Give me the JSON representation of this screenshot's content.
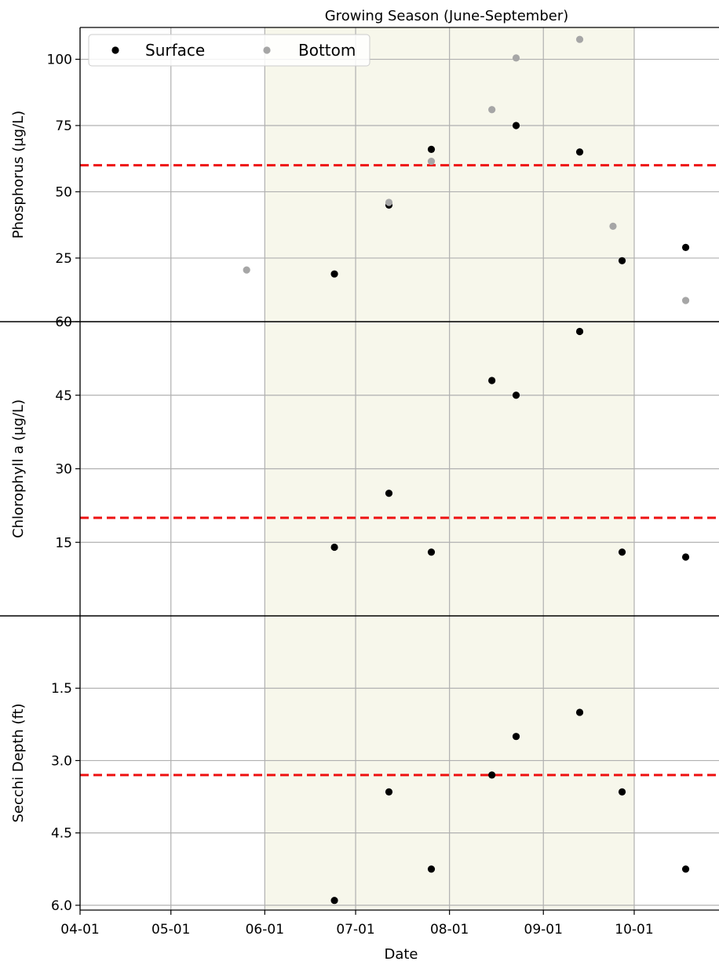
{
  "chart_data": {
    "type": "scatter",
    "annotation": "Growing Season (June-September)",
    "xlabel": "Date",
    "x_ticks": [
      "04-01",
      "05-01",
      "06-01",
      "07-01",
      "08-01",
      "09-01",
      "10-01"
    ],
    "x_tick_dates": [
      "2000-04-01",
      "2000-05-01",
      "2000-06-01",
      "2000-07-01",
      "2000-08-01",
      "2000-09-01",
      "2000-10-01"
    ],
    "xlim": [
      "2000-04-01",
      "2000-10-29"
    ],
    "shaded_region": {
      "from": "2000-06-01",
      "to": "2000-10-01",
      "color": "#f7f7eb"
    },
    "grid": true,
    "legend": {
      "placement": "top-left",
      "entries": [
        "Surface",
        "Bottom"
      ]
    },
    "colors": {
      "surface": "#000000",
      "bottom": "#a6a6a6",
      "threshold": "#ee1111",
      "grid": "#b0b0b0"
    },
    "panels": [
      {
        "ylabel": "Phosphorus (µg/L)",
        "ylim": [
          1,
          112
        ],
        "inverted": false,
        "y_ticks": [
          100,
          75,
          50,
          25
        ],
        "y_tick_labels": [
          "100",
          "75",
          "50",
          "25"
        ],
        "threshold": 60,
        "series": [
          {
            "name": "Surface",
            "points": [
              {
                "x": "2000-06-24",
                "y": 19
              },
              {
                "x": "2000-07-12",
                "y": 45
              },
              {
                "x": "2000-07-26",
                "y": 66
              },
              {
                "x": "2000-08-23",
                "y": 75
              },
              {
                "x": "2000-09-13",
                "y": 65
              },
              {
                "x": "2000-09-27",
                "y": 24
              },
              {
                "x": "2000-10-18",
                "y": 29
              }
            ]
          },
          {
            "name": "Bottom",
            "points": [
              {
                "x": "2000-05-26",
                "y": 20.5
              },
              {
                "x": "2000-07-12",
                "y": 46
              },
              {
                "x": "2000-07-26",
                "y": 61.5
              },
              {
                "x": "2000-08-15",
                "y": 81
              },
              {
                "x": "2000-08-23",
                "y": 100.5
              },
              {
                "x": "2000-09-13",
                "y": 107.5
              },
              {
                "x": "2000-09-24",
                "y": 37
              },
              {
                "x": "2000-10-18",
                "y": 9
              }
            ]
          }
        ]
      },
      {
        "ylabel": "Chlorophyll a (µg/L)",
        "ylim": [
          0,
          60
        ],
        "inverted": false,
        "y_ticks": [
          60,
          45,
          30,
          15
        ],
        "y_tick_labels": [
          "60",
          "45",
          "30",
          "15"
        ],
        "threshold": 20,
        "series": [
          {
            "name": "Surface",
            "points": [
              {
                "x": "2000-06-24",
                "y": 14
              },
              {
                "x": "2000-07-12",
                "y": 25
              },
              {
                "x": "2000-07-26",
                "y": 13
              },
              {
                "x": "2000-08-15",
                "y": 48
              },
              {
                "x": "2000-08-23",
                "y": 45
              },
              {
                "x": "2000-09-13",
                "y": 58
              },
              {
                "x": "2000-09-27",
                "y": 13
              },
              {
                "x": "2000-10-18",
                "y": 12
              }
            ]
          }
        ]
      },
      {
        "ylabel": "Secchi Depth (ft)",
        "ylim": [
          0,
          6.1
        ],
        "inverted": true,
        "y_ticks": [
          1.5,
          3.0,
          4.5,
          6.0
        ],
        "y_tick_labels": [
          "1.5",
          "3.0",
          "4.5",
          "6.0"
        ],
        "threshold": 3.3,
        "series": [
          {
            "name": "Surface",
            "points": [
              {
                "x": "2000-06-24",
                "y": 5.9
              },
              {
                "x": "2000-07-12",
                "y": 3.65
              },
              {
                "x": "2000-07-26",
                "y": 5.25
              },
              {
                "x": "2000-08-15",
                "y": 3.3
              },
              {
                "x": "2000-08-23",
                "y": 2.5
              },
              {
                "x": "2000-09-13",
                "y": 2.0
              },
              {
                "x": "2000-09-27",
                "y": 3.65
              },
              {
                "x": "2000-10-18",
                "y": 5.25
              }
            ]
          }
        ]
      }
    ]
  }
}
